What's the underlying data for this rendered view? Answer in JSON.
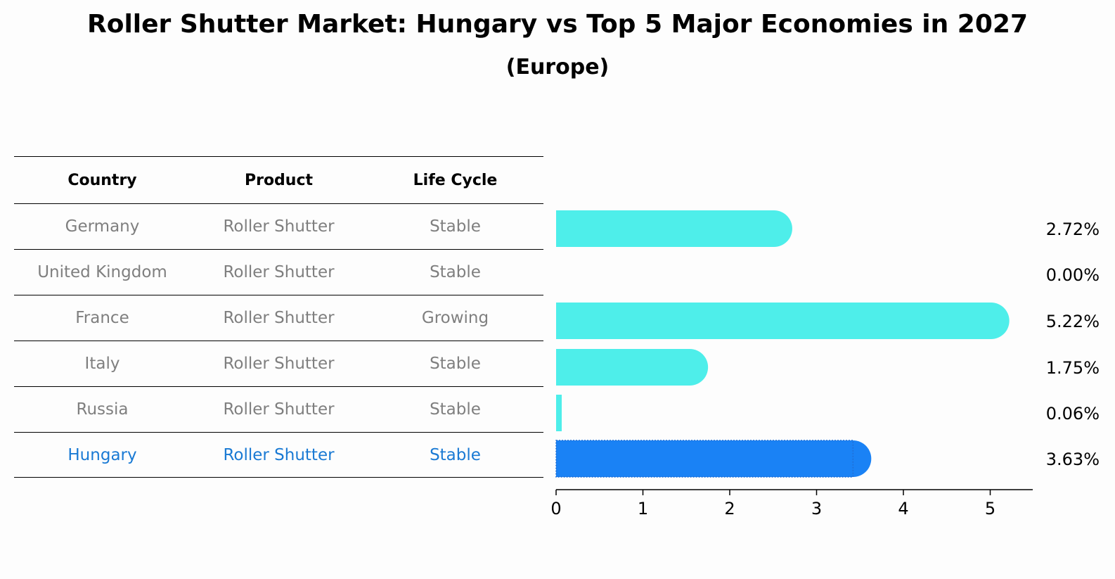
{
  "title": "Roller Shutter Market: Hungary vs Top 5 Major Economies in 2027",
  "subtitle": "(Europe)",
  "table": {
    "headers": [
      "Country",
      "Product",
      "Life Cycle"
    ],
    "rows": [
      {
        "country": "Germany",
        "product": "Roller Shutter",
        "life_cycle": "Stable"
      },
      {
        "country": "United Kingdom",
        "product": "Roller Shutter",
        "life_cycle": "Stable"
      },
      {
        "country": "France",
        "product": "Roller Shutter",
        "life_cycle": "Growing"
      },
      {
        "country": "Italy",
        "product": "Roller Shutter",
        "life_cycle": "Stable"
      },
      {
        "country": "Russia",
        "product": "Roller Shutter",
        "life_cycle": "Stable"
      },
      {
        "country": "Hungary",
        "product": "Roller Shutter",
        "life_cycle": "Stable"
      }
    ]
  },
  "colors": {
    "bar": "#4eeeea",
    "highlight_bar": "#1a82f5",
    "highlight_text": "#1a7ad4",
    "muted_text": "#7f7f7f"
  },
  "chart_data": {
    "type": "bar",
    "orientation": "horizontal",
    "categories": [
      "Germany",
      "United Kingdom",
      "France",
      "Italy",
      "Russia",
      "Hungary"
    ],
    "values": [
      2.72,
      0.0,
      5.22,
      1.75,
      0.06,
      3.63
    ],
    "value_labels": [
      "2.72%",
      "0.00%",
      "5.22%",
      "1.75%",
      "0.06%",
      "3.63%"
    ],
    "highlight": "Hungary",
    "xlim": [
      0,
      5.5
    ],
    "xticks": [
      0,
      1,
      2,
      3,
      4,
      5
    ],
    "xlabel": "",
    "ylabel": ""
  }
}
